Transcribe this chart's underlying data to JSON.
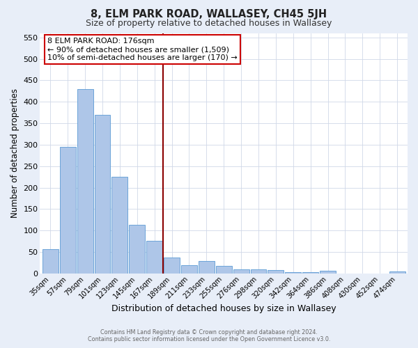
{
  "title": "8, ELM PARK ROAD, WALLASEY, CH45 5JH",
  "subtitle": "Size of property relative to detached houses in Wallasey",
  "xlabel": "Distribution of detached houses by size in Wallasey",
  "ylabel": "Number of detached properties",
  "bar_labels": [
    "35sqm",
    "57sqm",
    "79sqm",
    "101sqm",
    "123sqm",
    "145sqm",
    "167sqm",
    "189sqm",
    "211sqm",
    "233sqm",
    "255sqm",
    "276sqm",
    "298sqm",
    "320sqm",
    "342sqm",
    "364sqm",
    "386sqm",
    "408sqm",
    "430sqm",
    "452sqm",
    "474sqm"
  ],
  "bar_values": [
    57,
    295,
    430,
    370,
    225,
    113,
    76,
    38,
    20,
    29,
    18,
    9,
    10,
    8,
    4,
    4,
    6,
    0,
    0,
    0,
    5
  ],
  "bar_color": "#aec6e8",
  "bar_edge_color": "#5b9bd5",
  "vline_color": "#8b0000",
  "annotation_title": "8 ELM PARK ROAD: 176sqm",
  "annotation_line1": "← 90% of detached houses are smaller (1,509)",
  "annotation_line2": "10% of semi-detached houses are larger (170) →",
  "annotation_box_color": "#cc0000",
  "ylim": [
    0,
    560
  ],
  "yticks": [
    0,
    50,
    100,
    150,
    200,
    250,
    300,
    350,
    400,
    450,
    500,
    550
  ],
  "footer_line1": "Contains HM Land Registry data © Crown copyright and database right 2024.",
  "footer_line2": "Contains public sector information licensed under the Open Government Licence v3.0.",
  "background_color": "#e8eef8",
  "plot_bg_color": "#ffffff",
  "grid_color": "#d0d8e8"
}
